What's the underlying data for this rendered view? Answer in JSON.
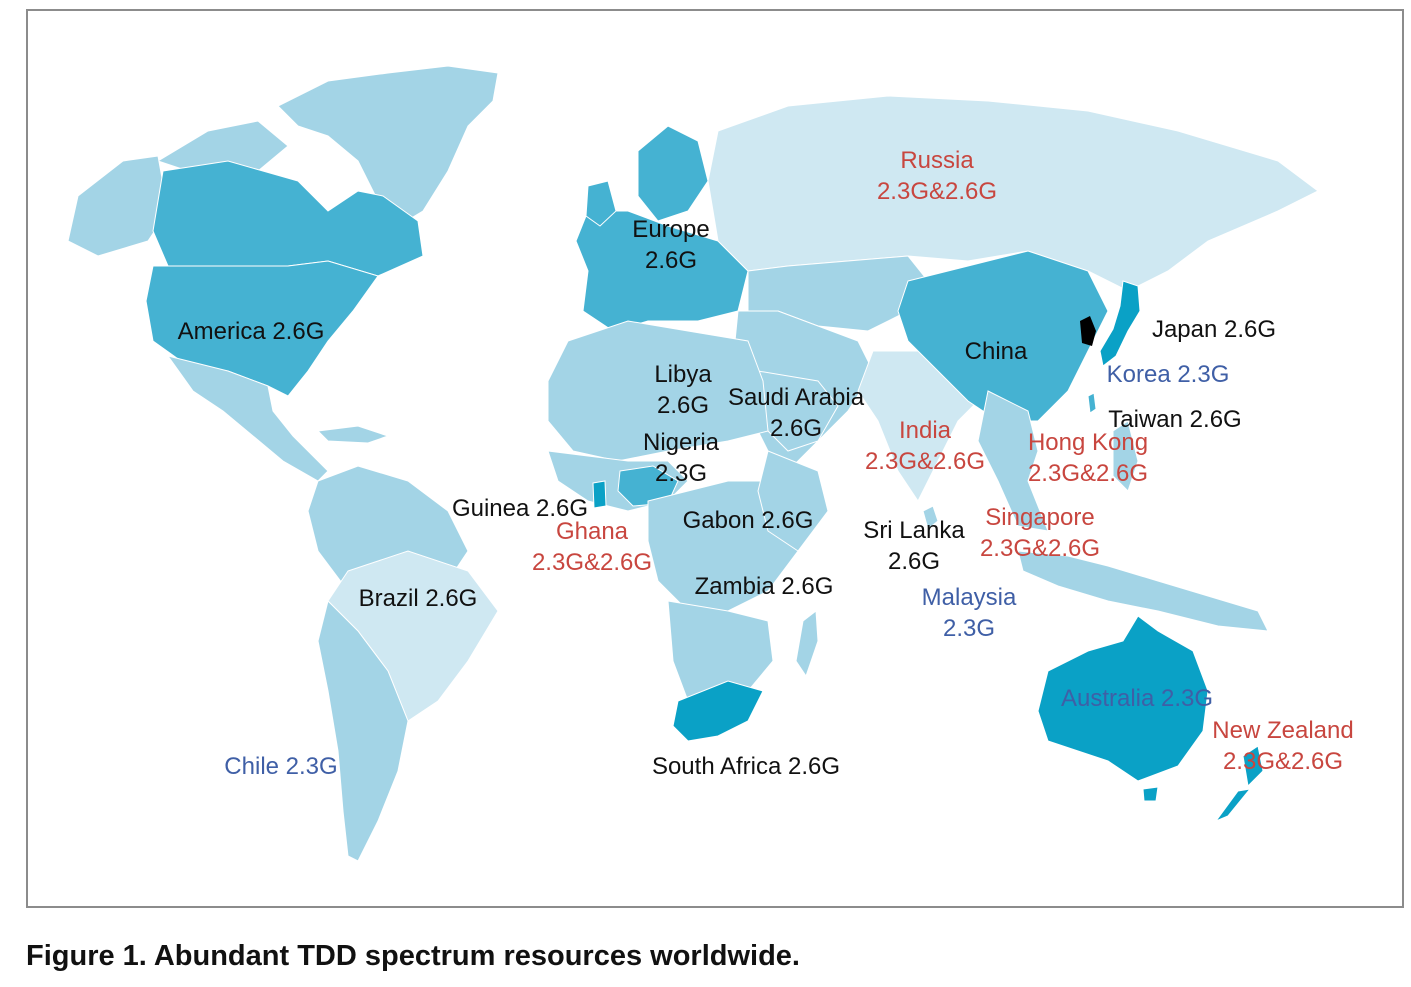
{
  "figure": {
    "caption": "Figure 1. Abundant TDD spectrum resources worldwide."
  },
  "colors": {
    "pale": "#cfe8f2",
    "light": "#a3d4e6",
    "medium": "#45b2d2",
    "strong": "#0aa1c6",
    "korea": "#000000",
    "label_black": "#111111",
    "label_red": "#c8463f",
    "label_blue": "#3f5fa6"
  },
  "labels": {
    "russia": "Russia\n2.3G&2.6G",
    "europe": "Europe\n2.6G",
    "america": "America 2.6G",
    "china": "China",
    "japan": "Japan 2.6G",
    "korea": "Korea 2.3G",
    "taiwan": "Taiwan 2.6G",
    "hong_kong": "Hong Kong\n2.3G&2.6G",
    "libya": "Libya\n2.6G",
    "saudi_arabia": "Saudi Arabia\n2.6G",
    "nigeria": "Nigeria\n2.3G",
    "india": "India\n2.3G&2.6G",
    "guinea": "Guinea 2.6G",
    "ghana": "Ghana\n2.3G&2.6G",
    "gabon": "Gabon 2.6G",
    "sri_lanka": "Sri Lanka\n2.6G",
    "singapore": "Singapore\n2.3G&2.6G",
    "malaysia": "Malaysia\n2.3G",
    "brazil": "Brazil 2.6G",
    "zambia": "Zambia 2.6G",
    "australia": "Australia 2.3G",
    "new_zealand": "New Zealand\n2.3G&2.6G",
    "chile": "Chile 2.3G",
    "south_africa": "South Africa 2.6G"
  }
}
